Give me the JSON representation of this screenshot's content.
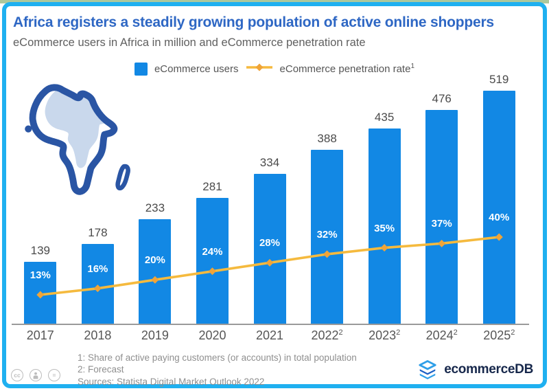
{
  "header": {
    "title": "Africa registers a steadily growing population of active online shoppers",
    "subtitle": "eCommerce users in Africa in million and eCommerce penetration rate"
  },
  "legend": {
    "users_label": "eCommerce users",
    "rate_label": "eCommerce penetration rate",
    "rate_sup": "1"
  },
  "chart_data": {
    "type": "bar",
    "title": "Africa registers a steadily growing population of active online shoppers",
    "subtitle": "eCommerce users in Africa in million and eCommerce penetration rate",
    "categories": [
      "2017",
      "2018",
      "2019",
      "2020",
      "2021",
      "2022",
      "2023",
      "2024",
      "2025"
    ],
    "category_sups": [
      "",
      "",
      "",
      "",
      "",
      "2",
      "2",
      "2",
      "2"
    ],
    "series": [
      {
        "name": "eCommerce users",
        "type": "bar",
        "unit": "million",
        "values": [
          139,
          178,
          233,
          281,
          334,
          388,
          435,
          476,
          519
        ]
      },
      {
        "name": "eCommerce penetration rate",
        "type": "line",
        "unit": "%",
        "values": [
          13,
          16,
          20,
          24,
          28,
          32,
          35,
          37,
          40
        ]
      }
    ],
    "bar_value_labels": [
      "139",
      "178",
      "233",
      "281",
      "334",
      "388",
      "435",
      "476",
      "519"
    ],
    "pct_value_labels": [
      "13%",
      "16%",
      "20%",
      "24%",
      "28%",
      "32%",
      "35%",
      "37%",
      "40%"
    ],
    "ylim": [
      0,
      550
    ],
    "grid": false,
    "legend_position": "top"
  },
  "footnotes": {
    "line1": "1: Share of active paying customers (or accounts) in total population",
    "line2": "2: Forecast",
    "line3": "Sources: Statista Digital Market Outlook 2022"
  },
  "branding": {
    "logo_text": "ecommerceDB"
  },
  "license": {
    "icon1": "cc",
    "icon3": "="
  },
  "colors": {
    "bar": "#1288e4",
    "line": "#f5ba3e",
    "marker": "#f0a438",
    "title": "#2e67c4",
    "border": "#1fb0f0",
    "top_strip": "#adc89c",
    "map_outline": "#2a55a4",
    "map_fill": "#c9d8ec"
  }
}
